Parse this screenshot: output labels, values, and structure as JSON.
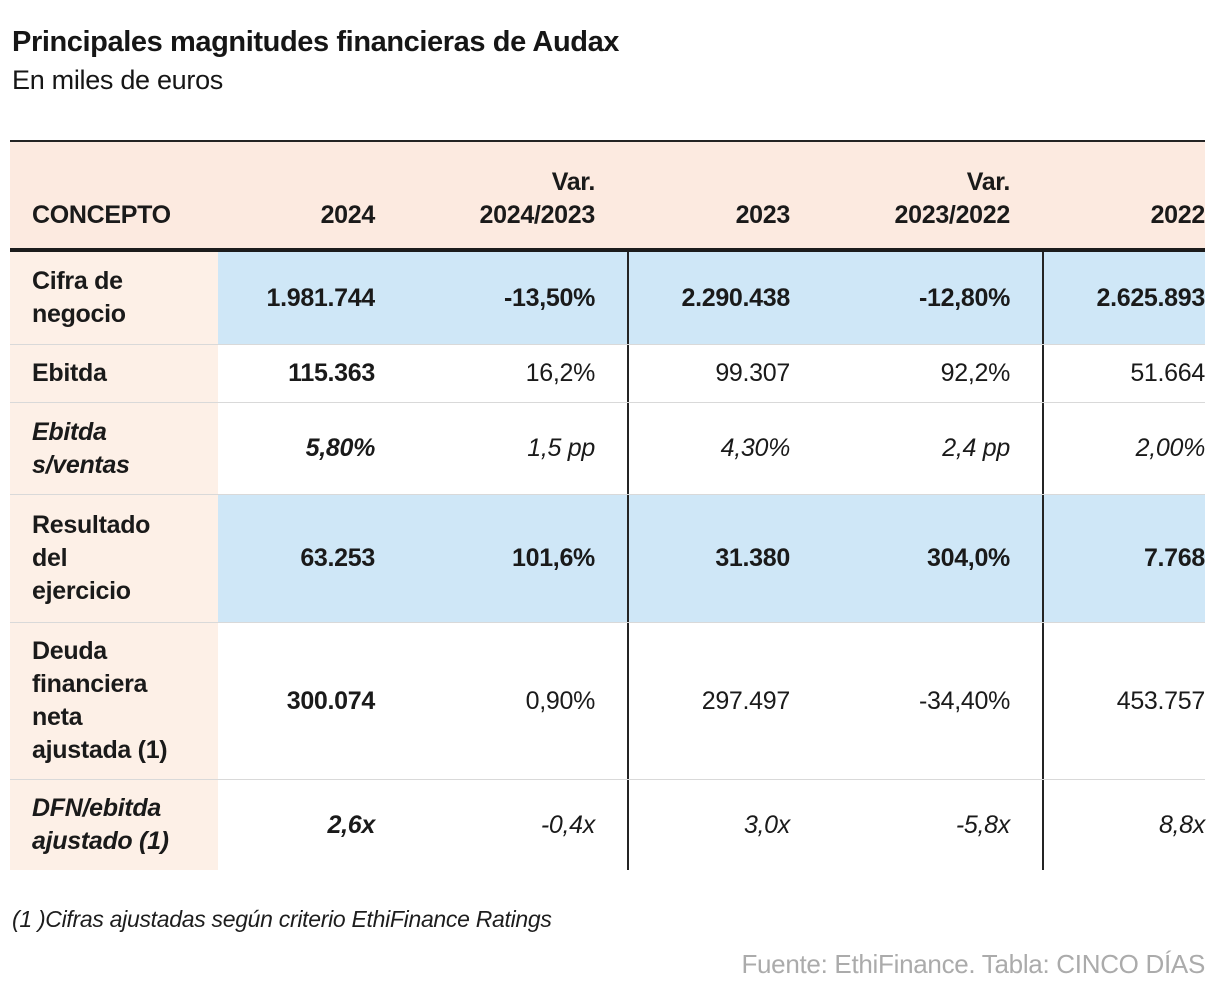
{
  "chart_data": {
    "type": "table",
    "title": "Principales magnitudes financieras de Audax",
    "subtitle": "En miles de euros",
    "columns": [
      "CONCEPTO",
      "2024",
      "Var. 2024/2023",
      "2023",
      "Var. 2023/2022",
      "2022"
    ],
    "header": [
      {
        "l1": "",
        "l2": "CONCEPTO"
      },
      {
        "l1": "",
        "l2": "2024"
      },
      {
        "l1": "Var.",
        "l2": "2024/2023"
      },
      {
        "l1": "",
        "l2": "2023"
      },
      {
        "l1": "Var.",
        "l2": "2023/2022"
      },
      {
        "l1": "",
        "l2": "2022"
      }
    ],
    "rows": [
      {
        "label": "Cifra de\nnegocio",
        "values": [
          "1.981.744",
          "-13,50%",
          "2.290.438",
          "-12,80%",
          "2.625.893"
        ],
        "highlight": true,
        "italic": false
      },
      {
        "label": "Ebitda",
        "values": [
          "115.363",
          "16,2%",
          "99.307",
          "92,2%",
          "51.664"
        ],
        "highlight": false,
        "italic": false
      },
      {
        "label": "Ebitda\ns/ventas",
        "values": [
          "5,80%",
          "1,5 pp",
          "4,30%",
          "2,4 pp",
          "2,00%"
        ],
        "highlight": false,
        "italic": true
      },
      {
        "label": "Resultado\ndel\nejercicio",
        "values": [
          "63.253",
          "101,6%",
          "31.380",
          "304,0%",
          "7.768"
        ],
        "highlight": true,
        "italic": false
      },
      {
        "label": "Deuda\nfinanciera\nneta\najustada (1)",
        "values": [
          "300.074",
          "0,90%",
          "297.497",
          "-34,40%",
          "453.757"
        ],
        "highlight": false,
        "italic": false
      },
      {
        "label": "DFN/ebitda\najustado (1)",
        "values": [
          "2,6x",
          "-0,4x",
          "3,0x",
          "-5,8x",
          "8,8x"
        ],
        "highlight": false,
        "italic": true
      }
    ]
  },
  "footnote": "(1 )Cifras ajustadas según criterio EthiFinance Ratings",
  "source": "Fuente: EthiFinance. Tabla: CINCO DÍAS",
  "colors": {
    "header_bg": "#fceae0",
    "label_bg": "#fdf0e7",
    "highlight_bg": "#cfe7f7",
    "rule_dark": "#242424",
    "rule_light": "#d9d9d9",
    "source_gray": "#ababab"
  }
}
